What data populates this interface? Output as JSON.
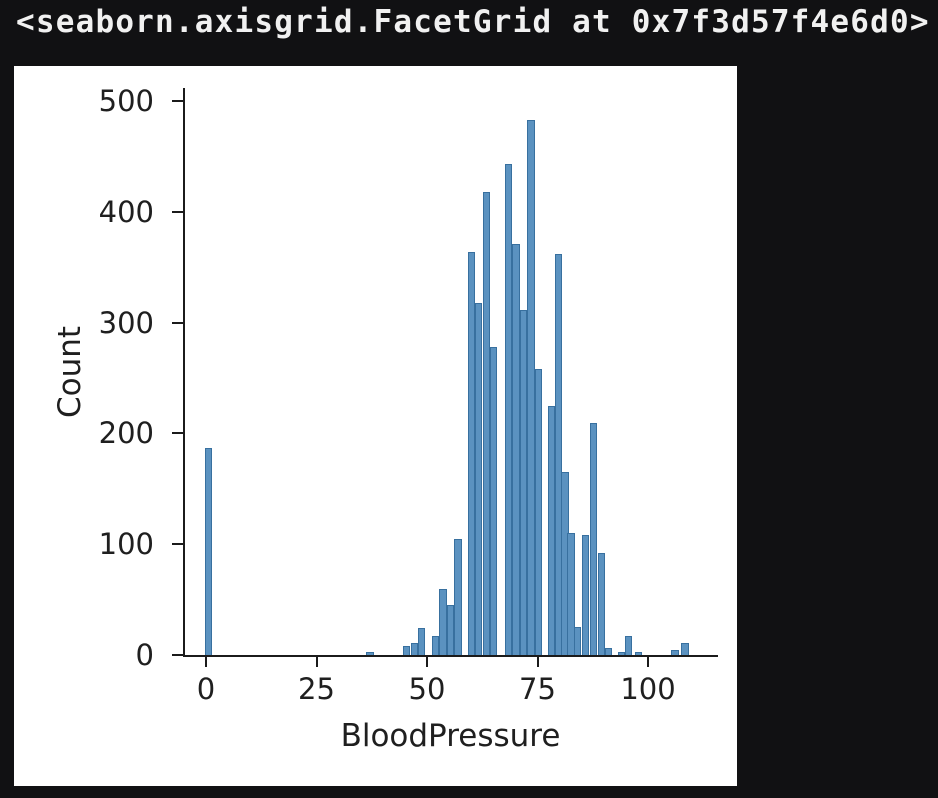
{
  "notebook": {
    "output_text": "<seaborn.axisgrid.FacetGrid at 0x7f3d57f4e6d0>"
  },
  "chart_data": {
    "type": "bar",
    "subtype": "histogram",
    "xlabel": "BloodPressure",
    "ylabel": "Count",
    "xticks": [
      0,
      25,
      50,
      75,
      100
    ],
    "yticks": [
      0,
      100,
      200,
      300,
      400,
      500
    ],
    "xlim": [
      -4.8,
      115.8
    ],
    "ylim": [
      0,
      511
    ],
    "grid": false,
    "legend": null,
    "bin_width": 1.67,
    "bar_color": "#5b92c0",
    "bar_edge_color": "#38709f",
    "bars": [
      {
        "x": 0.6,
        "count": 187
      },
      {
        "x": 37.1,
        "count": 3
      },
      {
        "x": 45.4,
        "count": 8
      },
      {
        "x": 47.1,
        "count": 11
      },
      {
        "x": 48.8,
        "count": 24
      },
      {
        "x": 51.9,
        "count": 17
      },
      {
        "x": 53.6,
        "count": 60
      },
      {
        "x": 55.3,
        "count": 45
      },
      {
        "x": 57.0,
        "count": 105
      },
      {
        "x": 60.0,
        "count": 364
      },
      {
        "x": 61.7,
        "count": 318
      },
      {
        "x": 63.4,
        "count": 418
      },
      {
        "x": 65.1,
        "count": 278
      },
      {
        "x": 68.4,
        "count": 443
      },
      {
        "x": 70.1,
        "count": 371
      },
      {
        "x": 71.8,
        "count": 311
      },
      {
        "x": 73.5,
        "count": 483
      },
      {
        "x": 75.2,
        "count": 258
      },
      {
        "x": 78.1,
        "count": 225
      },
      {
        "x": 79.8,
        "count": 362
      },
      {
        "x": 81.2,
        "count": 165
      },
      {
        "x": 82.6,
        "count": 110
      },
      {
        "x": 84.0,
        "count": 25
      },
      {
        "x": 85.9,
        "count": 108
      },
      {
        "x": 87.7,
        "count": 209
      },
      {
        "x": 89.4,
        "count": 92
      },
      {
        "x": 91.1,
        "count": 6
      },
      {
        "x": 94.0,
        "count": 3
      },
      {
        "x": 95.6,
        "count": 17
      },
      {
        "x": 97.9,
        "count": 3
      },
      {
        "x": 106.1,
        "count": 5
      },
      {
        "x": 108.4,
        "count": 11
      }
    ]
  }
}
